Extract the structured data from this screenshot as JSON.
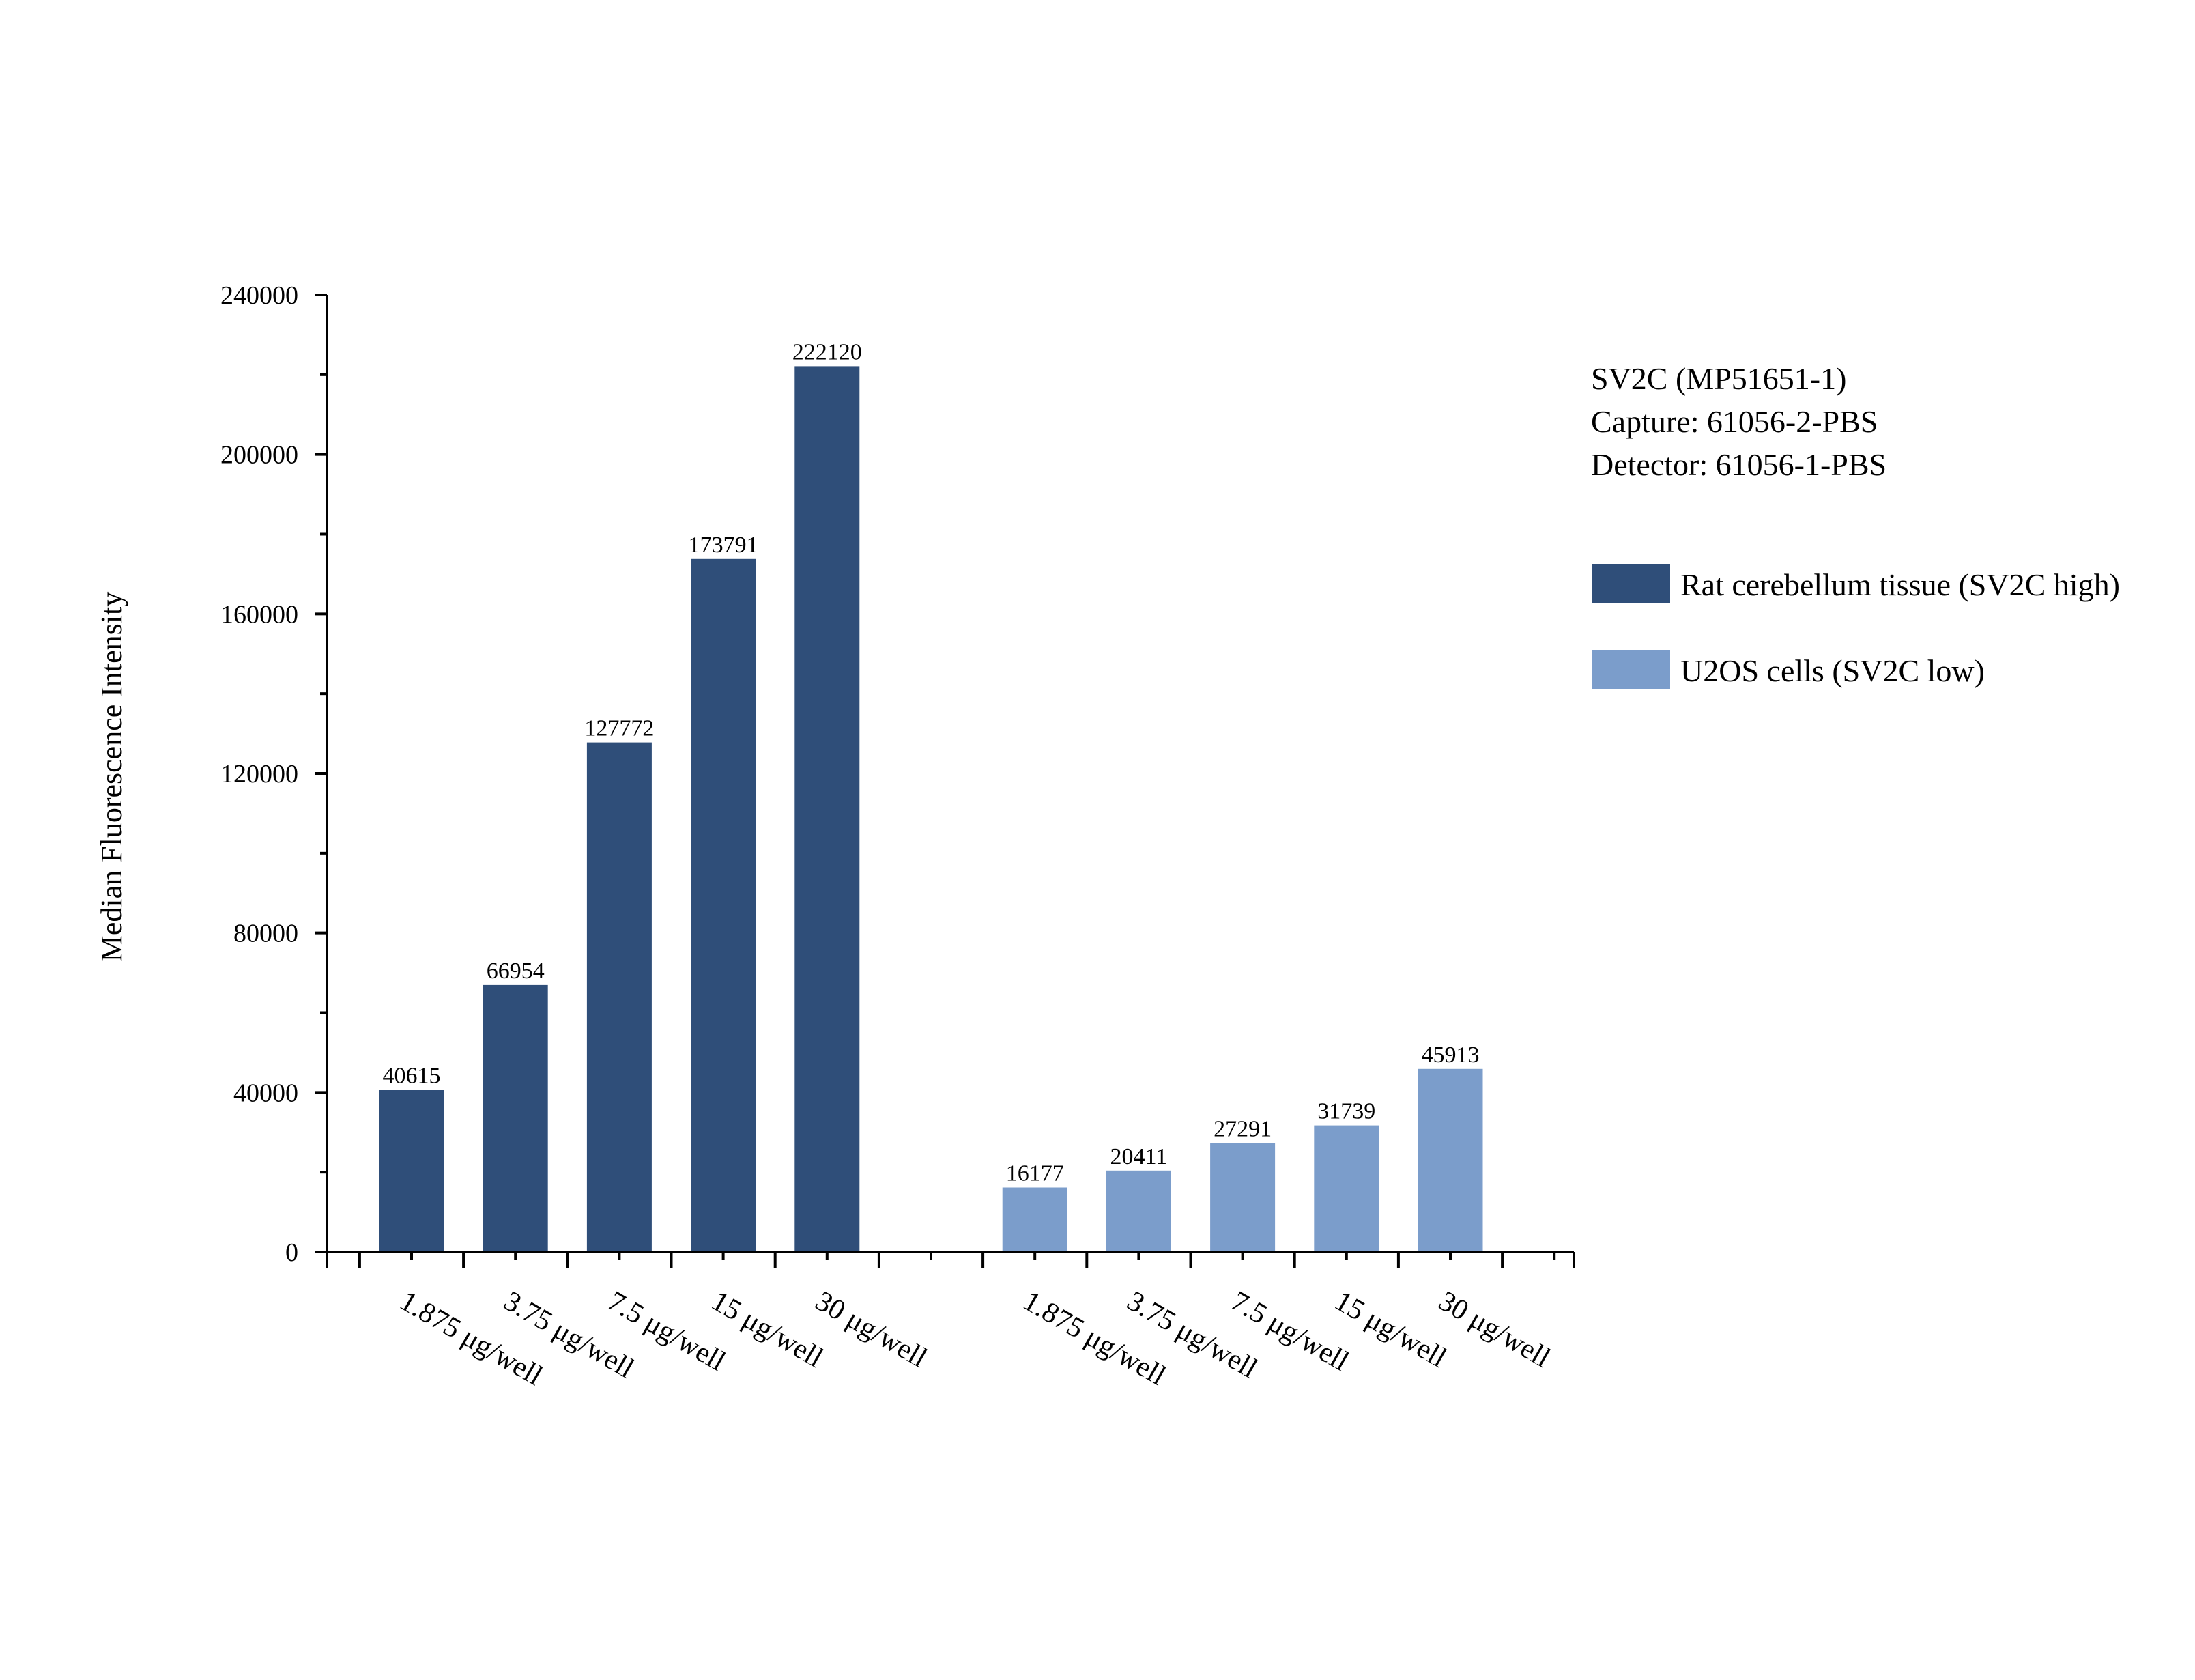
{
  "chart_data": {
    "type": "bar",
    "categories": [
      "1.875 μg/well",
      "3.75 μg/well",
      "7.5 μg/well",
      "15 μg/well",
      "30 μg/well"
    ],
    "series": [
      {
        "name": "Rat cerebellum tissue (SV2C high)",
        "values": [
          40615,
          66954,
          127772,
          173791,
          222120
        ],
        "color": "#2f4e79"
      },
      {
        "name": "U2OS cells (SV2C low)",
        "values": [
          16177,
          20411,
          27291,
          31739,
          45913
        ],
        "color": "#7b9dcb"
      }
    ],
    "data_labels": [
      [
        "40615",
        "66954",
        "127772",
        "173791",
        "222120"
      ],
      [
        "16177",
        "20411",
        "27291",
        "31739",
        "45913"
      ]
    ],
    "title": "",
    "xlabel": "",
    "ylabel": "Median Fluorescence Intensity",
    "ylim": [
      0,
      240000
    ],
    "yticks": [
      0,
      40000,
      80000,
      120000,
      160000,
      200000,
      240000
    ],
    "ytick_labels": [
      "0",
      "40000",
      "80000",
      "120000",
      "160000",
      "200000",
      "240000"
    ],
    "grid": false,
    "legend_position": "right",
    "info_lines": [
      "SV2C (MP51651-1)",
      "Capture: 61056-2-PBS",
      "Detector: 61056-1-PBS"
    ]
  }
}
